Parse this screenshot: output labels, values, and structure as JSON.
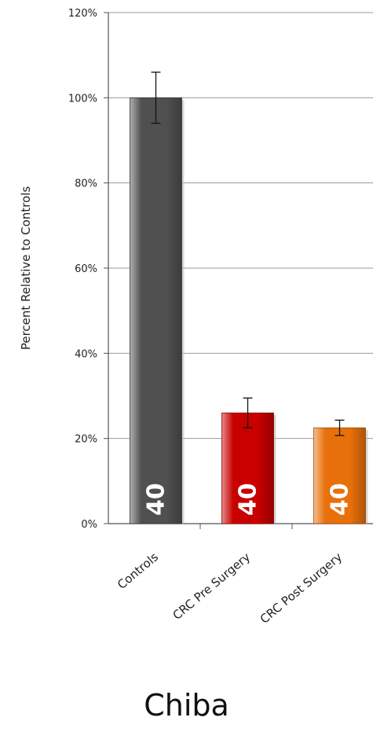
{
  "chart_data": {
    "type": "bar",
    "title": "Chiba",
    "xlabel": "",
    "ylabel": "Percent Relative to Controls",
    "ylim": [
      0,
      120
    ],
    "yticks": [
      "0%",
      "20%",
      "40%",
      "60%",
      "80%",
      "100%",
      "120%"
    ],
    "ytick_values": [
      0,
      20,
      40,
      60,
      80,
      100,
      120
    ],
    "grid": true,
    "categories": [
      "Controls",
      "CRC Pre Surgery",
      "CRC Post Surgery"
    ],
    "values": [
      100,
      26,
      22.5
    ],
    "errors": [
      6,
      3.5,
      1.8
    ],
    "bar_labels": [
      "40",
      "40",
      "40"
    ],
    "colors": [
      "#505050",
      "#c80000",
      "#e8700a"
    ]
  }
}
